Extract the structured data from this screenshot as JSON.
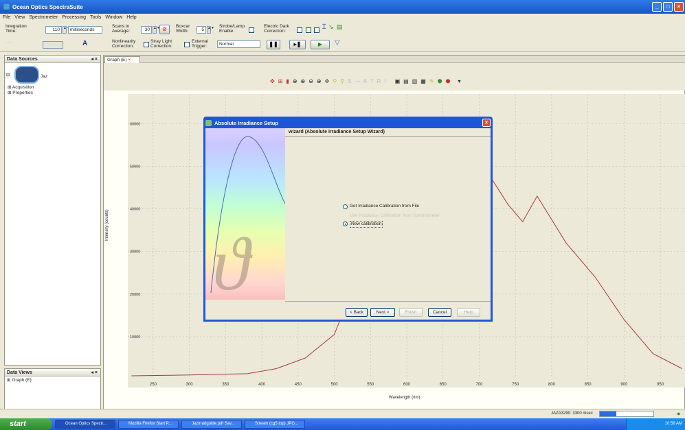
{
  "window": {
    "title": "Ocean Optics SpectraSuite"
  },
  "menu": [
    "File",
    "View",
    "Spectrometer",
    "Processing",
    "Tools",
    "Window",
    "Help"
  ],
  "toolbar": {
    "integration_label": "Integration Time:",
    "integration_value": "110",
    "integration_unit": "milliseconds",
    "scans_label": "Scans to Average:",
    "scans_value": "30",
    "boxcar_label": "Boxcar Width:",
    "boxcar_value": "5",
    "strobe_label": "Strobe/Lamp Enable:",
    "dark_label": "Electric Dark Correction:",
    "nonlin_label": "Nonlinearity Correction:",
    "stray_label": "Stray Light Correction:",
    "trigger_label": "External Trigger:",
    "trigger_value": "Normal"
  },
  "left_panel": {
    "title": "Data Sources",
    "device": "Jaz",
    "items": [
      "Acquisition",
      "Properties"
    ]
  },
  "views_panel": {
    "title": "Data Views",
    "items": [
      "Graph (E)"
    ]
  },
  "graph": {
    "tab_label": "Graph (E)"
  },
  "chart_data": {
    "type": "line",
    "xlabel": "Wavelength (nm)",
    "ylabel": "Intensity (counts)",
    "xlim": [
      215,
      985
    ],
    "ylim": [
      0,
      67000
    ],
    "xticks": [
      250,
      300,
      350,
      400,
      450,
      500,
      550,
      600,
      650,
      700,
      750,
      800,
      850,
      900,
      950
    ],
    "yticks": [
      10000,
      20000,
      30000,
      40000,
      50000,
      60000
    ],
    "ytick_labels": [
      "10000",
      "20000",
      "30000",
      "40000",
      "50000",
      "60000"
    ],
    "grid": true,
    "series": [
      {
        "color": "#a83a3a",
        "x": [
          220,
          300,
          380,
          420,
          460,
          500,
          520,
          540,
          560,
          640,
          680,
          700,
          710,
          740,
          760,
          780,
          820,
          860,
          900,
          940,
          980
        ],
        "y": [
          800,
          1000,
          1300,
          2500,
          5000,
          10500,
          19000,
          32000,
          46000,
          56000,
          54000,
          51000,
          49000,
          41000,
          37000,
          43000,
          32000,
          24000,
          14000,
          6000,
          2500
        ]
      }
    ]
  },
  "dialog": {
    "title": "Absolute Irradiance Setup",
    "header": "wizard (Absolute Irradiance Setup Wizard)",
    "option1": "Get Irradiance Calibration from File",
    "option2": "Use Irradiance Calibration from Spectrometer",
    "option3": "New calibration",
    "buttons": {
      "back": "< Back",
      "next": "Next >",
      "finish": "Finish",
      "cancel": "Cancel",
      "help": "Help"
    }
  },
  "status": {
    "text": "JAZA3290: 3300 msec",
    "progress": 0.31,
    "progress_label": "31%"
  },
  "taskbar": {
    "start": "start",
    "tasks": [
      "Ocean Optics Spectr...",
      "Mozilla Firefox Start P...",
      "Jazirradguide.pdf Sav...",
      "Stream (cg5 top) JPG..."
    ],
    "clock": "10:58 AM"
  }
}
